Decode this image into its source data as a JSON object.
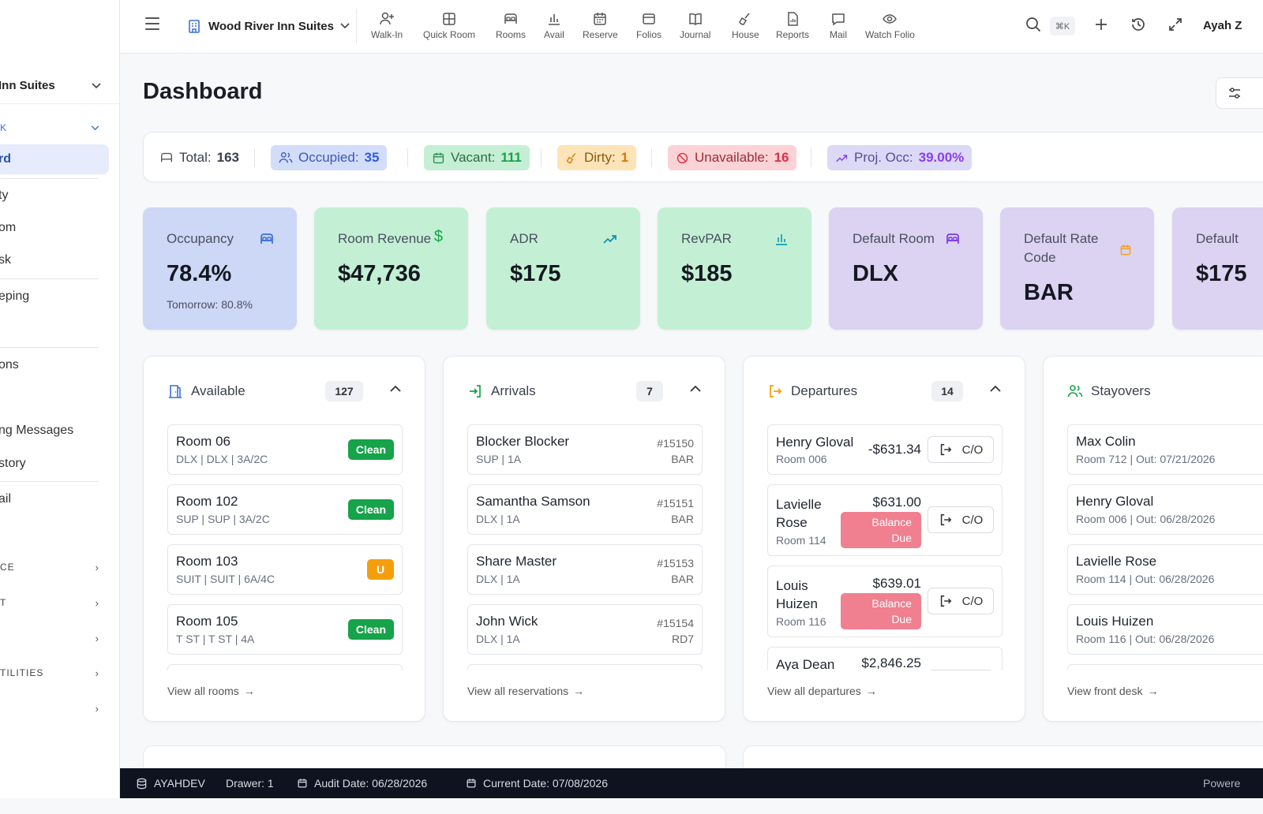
{
  "sidebar": {
    "top_mark": ".",
    "property": "Inn Suites",
    "sections": {
      "front_desk": "K",
      "service": "CE",
      "accounting": "T",
      "blank": "",
      "utilities": "TILITIES"
    },
    "items": {
      "dashboard": "rd",
      "availability": "ty",
      "quick_room": "om",
      "desk": "sk",
      "housekeeping": "eping",
      "reservations": "ons",
      "messages": "ng Messages",
      "history": "story",
      "mail": "ail"
    }
  },
  "topbar": {
    "property": "Wood River Inn Suites",
    "buttons": [
      "Walk-In",
      "Quick Room",
      "Rooms",
      "Avail",
      "Reserve",
      "Folios",
      "Journal",
      "House",
      "Reports",
      "Mail",
      "Watch Folio"
    ],
    "shortcut": "⌘K",
    "user": "Ayah Z"
  },
  "page": {
    "title": "Dashboard"
  },
  "stats": {
    "total_label": "Total:",
    "total": "163",
    "occupied_label": "Occupied:",
    "occupied": "35",
    "vacant_label": "Vacant:",
    "vacant": "111",
    "dirty_label": "Dirty:",
    "dirty": "1",
    "unavailable_label": "Unavailable:",
    "unavailable": "16",
    "proj_label": "Proj. Occ:",
    "proj": "39.00%"
  },
  "kpis": {
    "occupancy": {
      "label": "Occupancy",
      "value": "78.4%",
      "sub": "Tomorrow: 80.8%"
    },
    "revenue": {
      "label": "Room Revenue",
      "value": "$47,736"
    },
    "adr": {
      "label": "ADR",
      "value": "$175"
    },
    "revpar": {
      "label": "RevPAR",
      "value": "$185"
    },
    "default_room": {
      "label": "Default Room",
      "value": "DLX"
    },
    "default_rate": {
      "label": "Default Rate Code",
      "value": "BAR"
    },
    "default_other": {
      "label": "Default",
      "value": "$175"
    }
  },
  "colors": {
    "occupancy_card": "#cdd8f6",
    "green_card": "#c3f0d4",
    "purple_card": "#dcd2f2",
    "accent_blue": "#3b6fd8"
  },
  "available": {
    "title": "Available",
    "count": "127",
    "footer": "View all rooms",
    "rows": [
      {
        "title": "Room 06",
        "sub": "DLX | DLX | 3A/2C",
        "badge": "Clean"
      },
      {
        "title": "Room 102",
        "sub": "SUP | SUP | 3A/2C",
        "badge": "Clean"
      },
      {
        "title": "Room 103",
        "sub": "SUIT | SUIT | 6A/4C",
        "badge": "U"
      },
      {
        "title": "Room 105",
        "sub": "T ST | T ST | 4A",
        "badge": "Clean"
      }
    ]
  },
  "arrivals": {
    "title": "Arrivals",
    "count": "7",
    "footer": "View all reservations",
    "rows": [
      {
        "title": "Blocker Blocker",
        "sub": "SUP | 1A",
        "conf": "#15150",
        "rate": "BAR"
      },
      {
        "title": "Samantha Samson",
        "sub": "DLX | 1A",
        "conf": "#15151",
        "rate": "BAR"
      },
      {
        "title": "Share Master",
        "sub": "DLX | 1A",
        "conf": "#15153",
        "rate": "BAR"
      },
      {
        "title": "John Wick",
        "sub": "DLX | 1A",
        "conf": "#15154",
        "rate": "RD7"
      }
    ]
  },
  "departures": {
    "title": "Departures",
    "count": "14",
    "footer": "View all departures",
    "co_label": "C/O",
    "balance_line1": "Balance",
    "balance_line2": "Due",
    "rows": [
      {
        "name": "Henry Gloval",
        "room": "Room 006",
        "amount": "-$631.34"
      },
      {
        "name1": "Lavielle",
        "name2": "Rose",
        "room": "Room 114",
        "amount": "$631.00"
      },
      {
        "name1": "Louis",
        "name2": "Huizen",
        "room": "Room 116",
        "amount": "$639.01"
      },
      {
        "name": "Aya Dean",
        "amount": "$2,846.25"
      }
    ]
  },
  "stayovers": {
    "title": "Stayovers",
    "footer": "View front desk",
    "rows": [
      {
        "title": "Max Colin",
        "sub": "Room 712 | Out: 07/21/2026"
      },
      {
        "title": "Henry Gloval",
        "sub": "Room 006 | Out: 06/28/2026"
      },
      {
        "title": "Lavielle Rose",
        "sub": "Room 114 | Out: 06/28/2026"
      },
      {
        "title": "Louis Huizen",
        "sub": "Room 116 | Out: 06/28/2026"
      }
    ]
  },
  "statusbar": {
    "user": "AYAHDEV",
    "drawer": "Drawer: 1",
    "audit": "Audit Date: 06/28/2026",
    "current": "Current Date: 07/08/2026",
    "powered": "Powere"
  }
}
